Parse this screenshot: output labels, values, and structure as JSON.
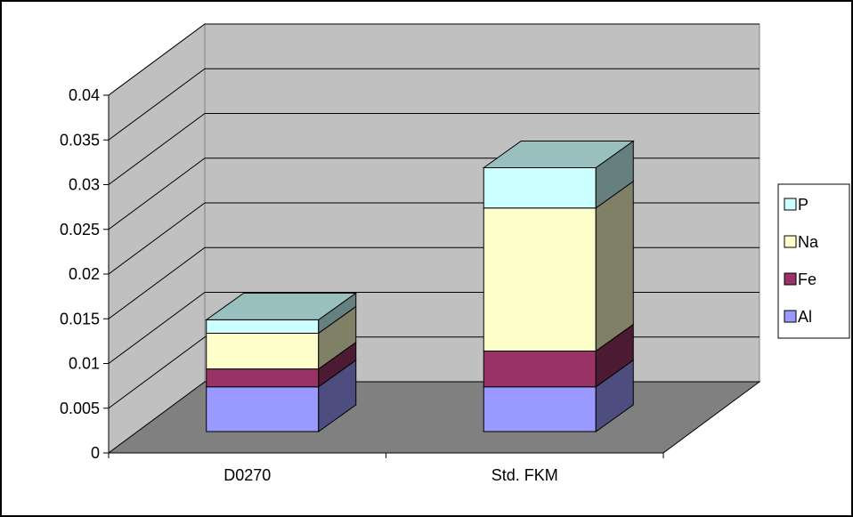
{
  "chart_data": {
    "type": "bar",
    "stacked": true,
    "three_d": true,
    "categories": [
      "D0270",
      "Std. FKM"
    ],
    "series": [
      {
        "name": "Al",
        "values": [
          0.005,
          0.005
        ],
        "color": "#9999ff"
      },
      {
        "name": "Fe",
        "values": [
          0.002,
          0.004
        ],
        "color": "#993366"
      },
      {
        "name": "Na",
        "values": [
          0.004,
          0.016
        ],
        "color": "#ffffcc"
      },
      {
        "name": "P",
        "values": [
          0.0015,
          0.0045
        ],
        "color": "#ccffff"
      }
    ],
    "ylim": [
      0,
      0.04
    ],
    "yticks": [
      {
        "value": 0,
        "label": "0"
      },
      {
        "value": 0.005,
        "label": "0.005"
      },
      {
        "value": 0.01,
        "label": "0.01"
      },
      {
        "value": 0.015,
        "label": "0.015"
      },
      {
        "value": 0.02,
        "label": "0.02"
      },
      {
        "value": 0.025,
        "label": "0.025"
      },
      {
        "value": 0.03,
        "label": "0.03"
      },
      {
        "value": 0.035,
        "label": "0.035"
      },
      {
        "value": 0.04,
        "label": "0.04"
      }
    ],
    "grid": true,
    "legend_position": "right",
    "legend_order": [
      "P",
      "Na",
      "Fe",
      "Al"
    ],
    "wall_color": "#c0c0c0",
    "floor_color": "#808080"
  }
}
